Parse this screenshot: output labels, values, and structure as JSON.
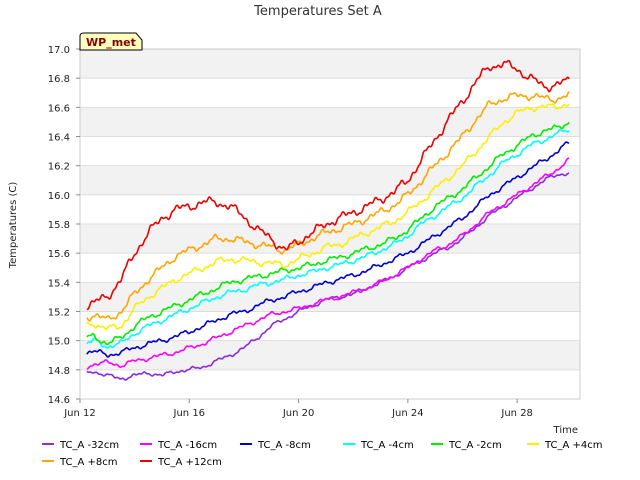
{
  "chart_data": {
    "type": "line",
    "title": "Temperatures Set A",
    "xlabel": "Time",
    "ylabel": "Temperatures (C)",
    "badge": "WP_met",
    "x_start": "Jun 12",
    "x_range_days": [
      12,
      30.3
    ],
    "ylim": [
      14.6,
      17.0
    ],
    "yticks": [
      14.6,
      14.8,
      15.0,
      15.2,
      15.4,
      15.6,
      15.8,
      16.0,
      16.2,
      16.4,
      16.6,
      16.8,
      17.0
    ],
    "ytick_labels": [
      "14.6",
      "14.8",
      "15.0",
      "15.2",
      "15.4",
      "15.6",
      "15.8",
      "16.0",
      "16.2",
      "16.4",
      "16.6",
      "16.8",
      "17.0"
    ],
    "xtick_labels": [
      "Jun 12",
      "Jun 16",
      "Jun 20",
      "Jun 24",
      "Jun 28"
    ],
    "grid": true,
    "legend_position": "bottom",
    "x": [
      "Jun 12.25",
      "Jun 12.5",
      "Jun 13",
      "Jun 13.5",
      "Jun 14",
      "Jun 14.5",
      "Jun 15",
      "Jun 15.5",
      "Jun 16",
      "Jun 16.5",
      "Jun 17",
      "Jun 17.5",
      "Jun 18",
      "Jun 18.5",
      "Jun 19",
      "Jun 19.5",
      "Jun 20",
      "Jun 20.5",
      "Jun 21",
      "Jun 21.5",
      "Jun 22",
      "Jun 22.5",
      "Jun 23",
      "Jun 23.5",
      "Jun 24",
      "Jun 24.5",
      "Jun 25",
      "Jun 25.5",
      "Jun 26",
      "Jun 26.5",
      "Jun 27",
      "Jun 27.5",
      "Jun 28",
      "Jun 28.5",
      "Jun 29",
      "Jun 29.5",
      "Jun 29.9"
    ],
    "x_days": [
      12.25,
      12.5,
      13,
      13.5,
      14,
      14.5,
      15,
      15.5,
      16,
      16.5,
      17,
      17.5,
      18,
      18.5,
      19,
      19.5,
      20,
      20.5,
      21,
      21.5,
      22,
      22.5,
      23,
      23.5,
      24,
      24.5,
      25,
      25.5,
      26,
      26.5,
      27,
      27.5,
      28,
      28.5,
      29,
      29.5,
      29.9
    ],
    "series": [
      {
        "name": "TC_A -32cm",
        "color": "#8a2be2",
        "values": [
          14.78,
          14.79,
          14.76,
          14.74,
          14.76,
          14.78,
          14.76,
          14.79,
          14.8,
          14.82,
          14.86,
          14.9,
          14.95,
          15.02,
          15.1,
          15.15,
          15.2,
          15.24,
          15.28,
          15.3,
          15.32,
          15.36,
          15.4,
          15.44,
          15.5,
          15.55,
          15.6,
          15.64,
          15.7,
          15.78,
          15.86,
          15.92,
          15.98,
          16.04,
          16.1,
          16.14,
          16.15
        ]
      },
      {
        "name": "TC_A -16cm",
        "color": "#ff00ff",
        "values": [
          14.82,
          14.84,
          14.85,
          14.83,
          14.86,
          14.88,
          14.9,
          14.92,
          14.95,
          14.98,
          15.02,
          15.06,
          15.1,
          15.14,
          15.18,
          15.2,
          15.22,
          15.25,
          15.28,
          15.3,
          15.33,
          15.36,
          15.4,
          15.45,
          15.5,
          15.56,
          15.62,
          15.66,
          15.72,
          15.8,
          15.88,
          15.94,
          16.0,
          16.06,
          16.12,
          16.18,
          16.24
        ]
      },
      {
        "name": "TC_A -8cm",
        "color": "#0000cd",
        "values": [
          14.92,
          14.93,
          14.9,
          14.92,
          14.95,
          14.98,
          15.0,
          15.03,
          15.06,
          15.1,
          15.14,
          15.18,
          15.2,
          15.24,
          15.28,
          15.3,
          15.34,
          15.36,
          15.4,
          15.42,
          15.45,
          15.48,
          15.52,
          15.56,
          15.6,
          15.66,
          15.72,
          15.78,
          15.84,
          15.92,
          16.0,
          16.06,
          16.12,
          16.18,
          16.24,
          16.3,
          16.36
        ]
      },
      {
        "name": "TC_A -4cm",
        "color": "#00ffff",
        "values": [
          14.98,
          15.0,
          14.96,
          14.98,
          15.05,
          15.1,
          15.14,
          15.18,
          15.22,
          15.26,
          15.3,
          15.33,
          15.35,
          15.38,
          15.4,
          15.42,
          15.45,
          15.47,
          15.5,
          15.52,
          15.55,
          15.58,
          15.62,
          15.66,
          15.72,
          15.8,
          15.86,
          15.92,
          15.98,
          16.06,
          16.14,
          16.22,
          16.28,
          16.34,
          16.38,
          16.42,
          16.45
        ]
      },
      {
        "name": "TC_A -2cm",
        "color": "#00ee00",
        "values": [
          15.02,
          15.03,
          14.98,
          15.02,
          15.1,
          15.16,
          15.2,
          15.24,
          15.28,
          15.32,
          15.36,
          15.4,
          15.42,
          15.44,
          15.46,
          15.48,
          15.5,
          15.52,
          15.55,
          15.57,
          15.6,
          15.63,
          15.66,
          15.7,
          15.76,
          15.84,
          15.92,
          15.98,
          16.04,
          16.12,
          16.2,
          16.28,
          16.34,
          16.4,
          16.44,
          16.46,
          16.5
        ]
      },
      {
        "name": "TC_A +4cm",
        "color": "#ffee00",
        "values": [
          15.1,
          15.12,
          15.08,
          15.1,
          15.22,
          15.3,
          15.36,
          15.42,
          15.46,
          15.5,
          15.54,
          15.56,
          15.55,
          15.54,
          15.53,
          15.52,
          15.56,
          15.6,
          15.64,
          15.66,
          15.7,
          15.74,
          15.78,
          15.82,
          15.88,
          15.96,
          16.04,
          16.12,
          16.2,
          16.3,
          16.4,
          16.5,
          16.56,
          16.6,
          16.6,
          16.61,
          16.62
        ]
      },
      {
        "name": "TC_A +8cm",
        "color": "#ffa500",
        "values": [
          15.16,
          15.18,
          15.14,
          15.2,
          15.32,
          15.42,
          15.5,
          15.58,
          15.62,
          15.66,
          15.7,
          15.7,
          15.68,
          15.66,
          15.64,
          15.62,
          15.66,
          15.7,
          15.74,
          15.77,
          15.8,
          15.84,
          15.88,
          15.93,
          16.0,
          16.1,
          16.2,
          16.3,
          16.4,
          16.52,
          16.62,
          16.66,
          16.68,
          16.68,
          16.66,
          16.66,
          16.68
        ]
      },
      {
        "name": "TC_A +12cm",
        "color": "#ee0000",
        "values": [
          15.24,
          15.26,
          15.3,
          15.42,
          15.6,
          15.74,
          15.84,
          15.9,
          15.92,
          15.95,
          15.95,
          15.92,
          15.85,
          15.76,
          15.7,
          15.62,
          15.68,
          15.74,
          15.8,
          15.84,
          15.88,
          15.92,
          15.97,
          16.02,
          16.1,
          16.24,
          16.38,
          16.52,
          16.64,
          16.78,
          16.88,
          16.9,
          16.86,
          16.8,
          16.74,
          16.76,
          16.78
        ]
      }
    ]
  }
}
